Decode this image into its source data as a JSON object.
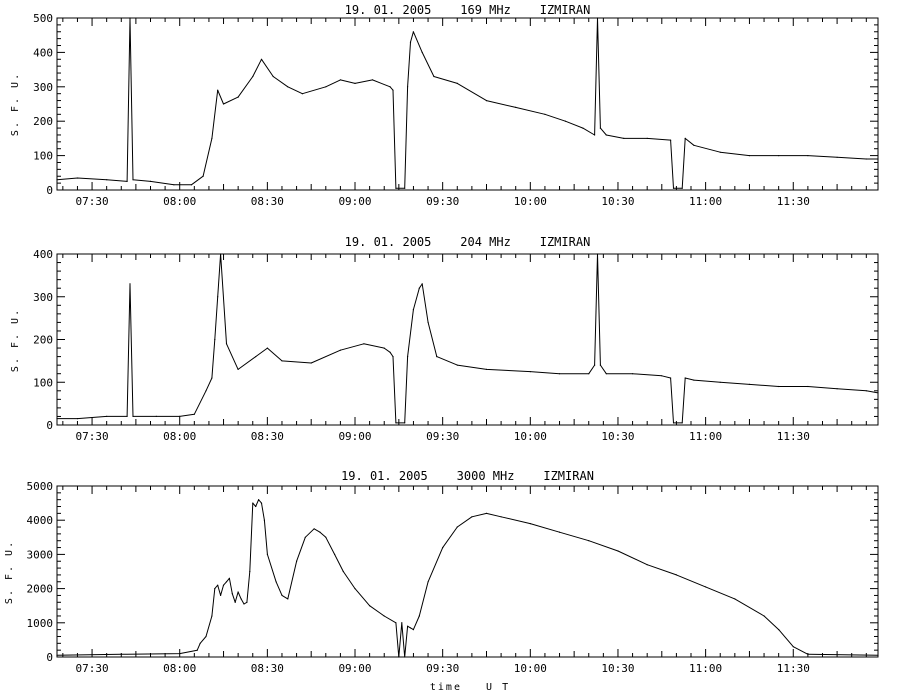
{
  "chart_data": [
    {
      "type": "line",
      "title": "19. 01. 2005    169 MHz    IZMIRAN",
      "ylabel": "S. F. U.",
      "xlabel": "",
      "ylim": [
        0,
        500
      ],
      "yticks": [
        0,
        100,
        200,
        300,
        400,
        500
      ],
      "xlim": [
        "07:18",
        "11:59"
      ],
      "xticks": [
        "07:30",
        "08:00",
        "08:30",
        "09:00",
        "09:30",
        "10:00",
        "10:30",
        "11:00",
        "11:30"
      ],
      "grid": false,
      "series": [
        {
          "x": [
            "07:18",
            "07:25",
            "07:35",
            "07:42",
            "07:43",
            "07:44",
            "07:50",
            "07:58",
            "08:04",
            "08:08",
            "08:11",
            "08:13",
            "08:15",
            "08:20",
            "08:25",
            "08:28",
            "08:32",
            "08:37",
            "08:42",
            "08:50",
            "08:55",
            "09:00",
            "09:06",
            "09:12",
            "09:13",
            "09:14",
            "09:17",
            "09:18",
            "09:19",
            "09:20",
            "09:23",
            "09:27",
            "09:35",
            "09:45",
            "09:55",
            "10:05",
            "10:12",
            "10:18",
            "10:22",
            "10:23",
            "10:24",
            "10:26",
            "10:32",
            "10:40",
            "10:48",
            "10:49",
            "10:52",
            "10:53",
            "10:56",
            "11:05",
            "11:15",
            "11:25",
            "11:35",
            "11:45",
            "11:55",
            "11:59"
          ],
          "y": [
            30,
            35,
            30,
            25,
            500,
            30,
            25,
            15,
            15,
            40,
            150,
            290,
            250,
            270,
            330,
            380,
            330,
            300,
            280,
            300,
            320,
            310,
            320,
            300,
            290,
            5,
            5,
            300,
            430,
            460,
            400,
            330,
            310,
            260,
            240,
            220,
            200,
            180,
            160,
            500,
            180,
            160,
            150,
            150,
            145,
            5,
            5,
            150,
            130,
            110,
            100,
            100,
            100,
            95,
            90,
            90
          ]
        }
      ]
    },
    {
      "type": "line",
      "title": "19. 01. 2005    204 MHz    IZMIRAN",
      "ylabel": "S. F. U.",
      "xlabel": "",
      "ylim": [
        0,
        400
      ],
      "yticks": [
        0,
        100,
        200,
        300,
        400
      ],
      "xlim": [
        "07:18",
        "11:59"
      ],
      "xticks": [
        "07:30",
        "08:00",
        "08:30",
        "09:00",
        "09:30",
        "10:00",
        "10:30",
        "11:00",
        "11:30"
      ],
      "grid": false,
      "series": [
        {
          "x": [
            "07:18",
            "07:25",
            "07:35",
            "07:42",
            "07:43",
            "07:44",
            "07:52",
            "08:00",
            "08:05",
            "08:09",
            "08:11",
            "08:12",
            "08:13",
            "08:14",
            "08:16",
            "08:20",
            "08:26",
            "08:30",
            "08:35",
            "08:45",
            "08:55",
            "09:03",
            "09:10",
            "09:12",
            "09:13",
            "09:14",
            "09:17",
            "09:18",
            "09:20",
            "09:22",
            "09:23",
            "09:25",
            "09:28",
            "09:35",
            "09:45",
            "10:00",
            "10:10",
            "10:20",
            "10:22",
            "10:23",
            "10:24",
            "10:26",
            "10:35",
            "10:45",
            "10:48",
            "10:49",
            "10:52",
            "10:53",
            "10:56",
            "11:05",
            "11:15",
            "11:25",
            "11:35",
            "11:45",
            "11:55",
            "11:59"
          ],
          "y": [
            15,
            15,
            20,
            20,
            330,
            20,
            20,
            20,
            25,
            80,
            110,
            200,
            300,
            400,
            190,
            130,
            160,
            180,
            150,
            145,
            175,
            190,
            180,
            170,
            160,
            5,
            5,
            160,
            270,
            320,
            330,
            240,
            160,
            140,
            130,
            125,
            120,
            120,
            140,
            400,
            140,
            120,
            120,
            115,
            110,
            5,
            5,
            110,
            105,
            100,
            95,
            90,
            90,
            85,
            80,
            75
          ]
        }
      ]
    },
    {
      "type": "line",
      "title": "19. 01. 2005    3000 MHz    IZMIRAN",
      "ylabel": "S. F. U.",
      "xlabel": "time   U T",
      "ylim": [
        0,
        5000
      ],
      "yticks": [
        0,
        1000,
        2000,
        3000,
        4000,
        5000
      ],
      "xlim": [
        "07:18",
        "11:59"
      ],
      "xticks": [
        "07:30",
        "08:00",
        "08:30",
        "09:00",
        "09:30",
        "10:00",
        "10:30",
        "11:00",
        "11:30"
      ],
      "grid": false,
      "series": [
        {
          "x": [
            "07:18",
            "07:40",
            "08:00",
            "08:06",
            "08:07",
            "08:09",
            "08:11",
            "08:12",
            "08:13",
            "08:14",
            "08:15",
            "08:16",
            "08:17",
            "08:18",
            "08:19",
            "08:20",
            "08:21",
            "08:22",
            "08:23",
            "08:24",
            "08:25",
            "08:26",
            "08:27",
            "08:28",
            "08:29",
            "08:30",
            "08:33",
            "08:35",
            "08:37",
            "08:40",
            "08:43",
            "08:46",
            "08:48",
            "08:50",
            "08:53",
            "08:56",
            "09:00",
            "09:05",
            "09:10",
            "09:14",
            "09:15",
            "09:16",
            "09:17",
            "09:18",
            "09:19",
            "09:20",
            "09:22",
            "09:25",
            "09:30",
            "09:35",
            "09:40",
            "09:45",
            "09:50",
            "10:00",
            "10:10",
            "10:20",
            "10:30",
            "10:40",
            "10:50",
            "11:00",
            "11:10",
            "11:20",
            "11:25",
            "11:30",
            "11:35",
            "11:59"
          ],
          "y": [
            50,
            80,
            100,
            200,
            400,
            600,
            1200,
            2000,
            2100,
            1800,
            2100,
            2200,
            2300,
            1850,
            1600,
            1900,
            1700,
            1550,
            1600,
            2500,
            4500,
            4400,
            4600,
            4500,
            4000,
            3000,
            2200,
            1800,
            1700,
            2800,
            3500,
            3750,
            3650,
            3500,
            3000,
            2500,
            2000,
            1500,
            1200,
            1000,
            0,
            1000,
            0,
            900,
            850,
            800,
            1200,
            2200,
            3200,
            3800,
            4100,
            4200,
            4100,
            3900,
            3650,
            3400,
            3100,
            2700,
            2400,
            2050,
            1700,
            1200,
            800,
            300,
            80,
            50
          ]
        }
      ]
    }
  ]
}
